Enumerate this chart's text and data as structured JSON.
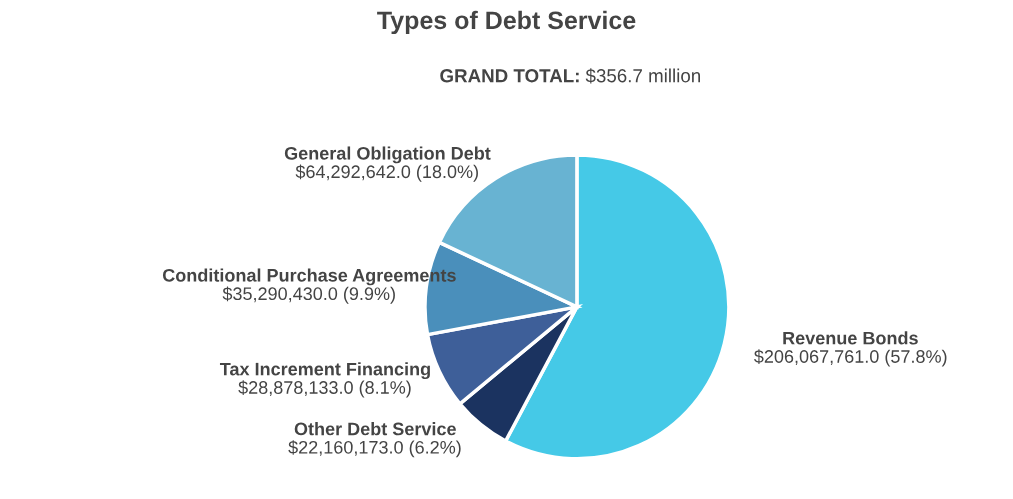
{
  "chart_data": {
    "type": "pie",
    "title": "Types of Debt Service",
    "annotations": [
      "GRAND TOTAL:",
      "$356.7 million"
    ],
    "categories": [
      "Revenue Bonds",
      "Other Debt Service",
      "Tax Increment Financing",
      "Conditional Purchase Agreements",
      "General Obligation Debt"
    ],
    "values": [
      206067761.0,
      22160173.0,
      28878133.0,
      35290430.0,
      64292642.0
    ],
    "value_labels": [
      "$206,067,761.0 (57.8%)",
      "$22,160,173.0 (6.2%)",
      "$28,878,133.0 (8.1%)",
      "$35,290,430.0 (9.9%)",
      "$64,292,642.0 (18.0%)"
    ],
    "colors": [
      "#45c9e7",
      "#1b3360",
      "#3e5f99",
      "#4a8fbb",
      "#68b3d2"
    ]
  }
}
